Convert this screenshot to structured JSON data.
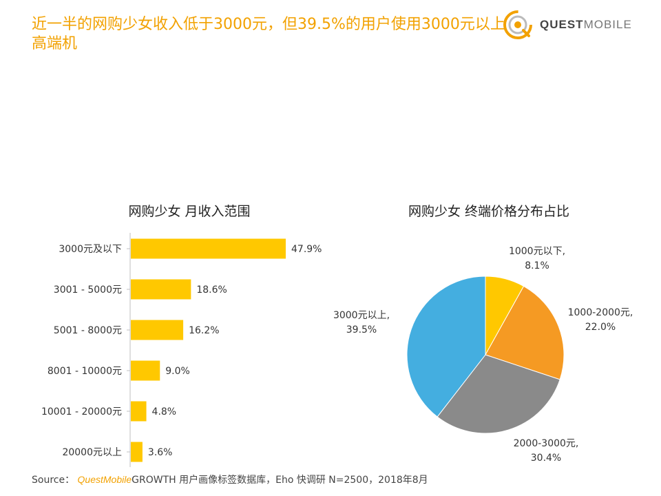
{
  "title": "近一半的网购少女收入低于3000元，但39.5%的用户使用3000元以上高端机",
  "logo": {
    "word1": "QUEST",
    "word2": "MOBILE",
    "name": "questmobile-logo"
  },
  "source": {
    "prefix": "Source：",
    "brand": "QuestMobile",
    "suffix": "GROWTH 用户画像标签数据库，Eho 快调研 N=2500，2018年8月"
  },
  "colors": {
    "title": "#f2a100",
    "bar": "#ffc800",
    "pie": [
      "#ffc800",
      "#f59a23",
      "#8a8a8a",
      "#44aee0"
    ]
  },
  "chart_data": [
    {
      "type": "bar",
      "orientation": "horizontal",
      "title": "网购少女 月收入范围",
      "categories": [
        "3000元及以下",
        "3001 - 5000元",
        "5001 - 8000元",
        "8001 - 10000元",
        "10001 - 20000元",
        "20000元以上"
      ],
      "values": [
        47.9,
        18.6,
        16.2,
        9.0,
        4.8,
        3.6
      ],
      "value_labels": [
        "47.9%",
        "18.6%",
        "16.2%",
        "9.0%",
        "4.8%",
        "3.6%"
      ],
      "unit": "%",
      "grid": false
    },
    {
      "type": "pie",
      "title": "网购少女 终端价格分布占比",
      "categories": [
        "1000元以下,",
        "1000-2000元,",
        "2000-3000元,",
        "3000元以上,"
      ],
      "values": [
        8.1,
        22.0,
        30.4,
        39.5
      ],
      "value_labels": [
        "8.1%",
        "22.0%",
        "30.4%",
        "39.5%"
      ],
      "unit": "%"
    }
  ]
}
